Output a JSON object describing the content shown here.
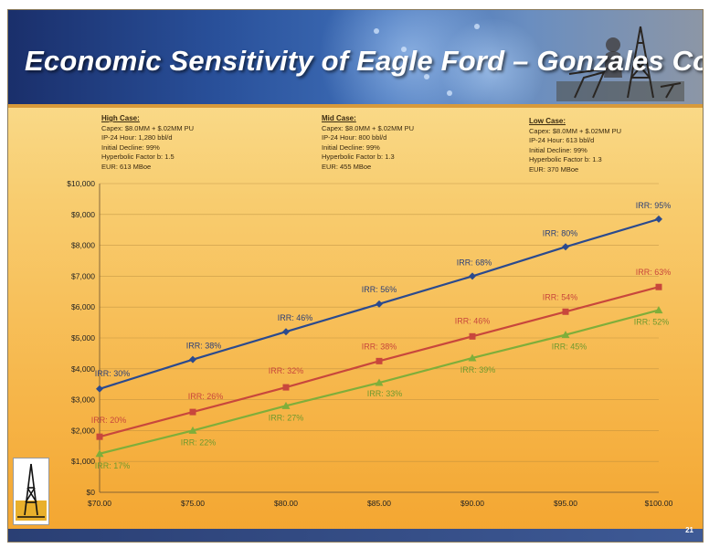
{
  "slide": {
    "title": "Economic Sensitivity of Eagle Ford – Gonzales County",
    "page_number": "21"
  },
  "cases": [
    {
      "heading": "High Case:",
      "lines": [
        "Capex: $8.0MM + $.02MM PU",
        "IP-24 Hour: 1,280 bbl/d",
        "Initial Decline: 99%",
        "Hyperbolic Factor b: 1.5",
        "EUR: 613 MBoe"
      ]
    },
    {
      "heading": "Mid Case:",
      "lines": [
        "Capex: $8.0MM + $.02MM PU",
        "IP-24 Hour: 800 bbl/d",
        "Initial Decline: 99%",
        "Hyperbolic Factor b: 1.3",
        "EUR: 455 MBoe"
      ]
    },
    {
      "heading": "Low Case:",
      "lines": [
        "Capex: $8.0MM + $.02MM PU",
        "IP-24 Hour: 613 bbl/d",
        "Initial Decline: 99%",
        "Hyperbolic Factor b: 1.3",
        "EUR: 370 MBoe"
      ]
    }
  ],
  "chart_data": {
    "type": "line",
    "x": [
      70,
      75,
      80,
      85,
      90,
      95,
      100
    ],
    "x_tick_labels": [
      "$70.00",
      "$75.00",
      "$80.00",
      "$85.00",
      "$90.00",
      "$95.00",
      "$100.00"
    ],
    "y_tick_labels": [
      "$0",
      "$1,000",
      "$2,000",
      "$3,000",
      "$4,000",
      "$5,000",
      "$6,000",
      "$7,000",
      "$8,000",
      "$9,000",
      "$10,000"
    ],
    "ylim": [
      0,
      10000
    ],
    "grid": true,
    "series": [
      {
        "color": "#2b4a8e",
        "marker": "diamond",
        "values": [
          3350,
          4300,
          5200,
          6100,
          7000,
          7950,
          8850
        ],
        "labels": [
          "IRR: 30%",
          "IRR: 38%",
          "IRR: 46%",
          "IRR: 56%",
          "IRR: 68%",
          "IRR: 80%",
          "IRR: 95%"
        ],
        "label_color": "#2b3f78"
      },
      {
        "color": "#c8473c",
        "marker": "square",
        "values": [
          1800,
          2600,
          3400,
          4250,
          5050,
          5850,
          6650
        ],
        "labels": [
          "IRR: 20%",
          "IRR: 26%",
          "IRR: 32%",
          "IRR: 38%",
          "IRR: 46%",
          "IRR: 54%",
          "IRR: 63%"
        ],
        "label_color": "#c8473c"
      },
      {
        "color": "#7fae3a",
        "marker": "triangle",
        "values": [
          1250,
          2000,
          2800,
          3550,
          4350,
          5100,
          5900
        ],
        "labels": [
          "IRR: 17%",
          "IRR: 22%",
          "IRR: 27%",
          "IRR: 33%",
          "IRR: 39%",
          "IRR: 45%",
          "IRR: 52%"
        ],
        "label_color": "#6e9a2e"
      }
    ]
  }
}
